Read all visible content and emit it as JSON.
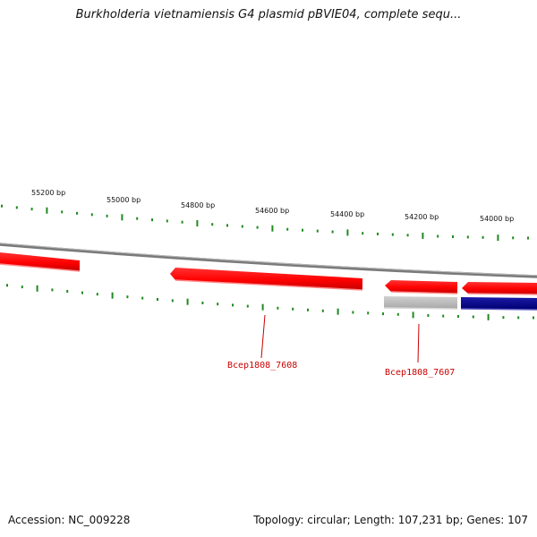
{
  "title": "Burkholderia vietnamiensis G4 plasmid pBVIE04, complete sequ...",
  "footer": {
    "accession": "Accession: NC_009228",
    "summary": "Topology: circular; Length: 107,231 bp; Genes: 107"
  },
  "colors": {
    "ruler_tick": "#1f8a1f",
    "backbone": "#8a8a8a",
    "gene_red": "#ff0000",
    "gene_gray": "#b8b8b8",
    "gene_navy": "#00008b",
    "label_red": "#cc0000"
  },
  "ruler": {
    "labels": [
      "55200 bp",
      "55000 bp",
      "54800 bp",
      "54600 bp",
      "54400 bp",
      "54200 bp",
      "54000 bp"
    ]
  },
  "genes": [
    {
      "label": "Bcep1808_7608"
    },
    {
      "label": "Bcep1808_7607"
    }
  ]
}
